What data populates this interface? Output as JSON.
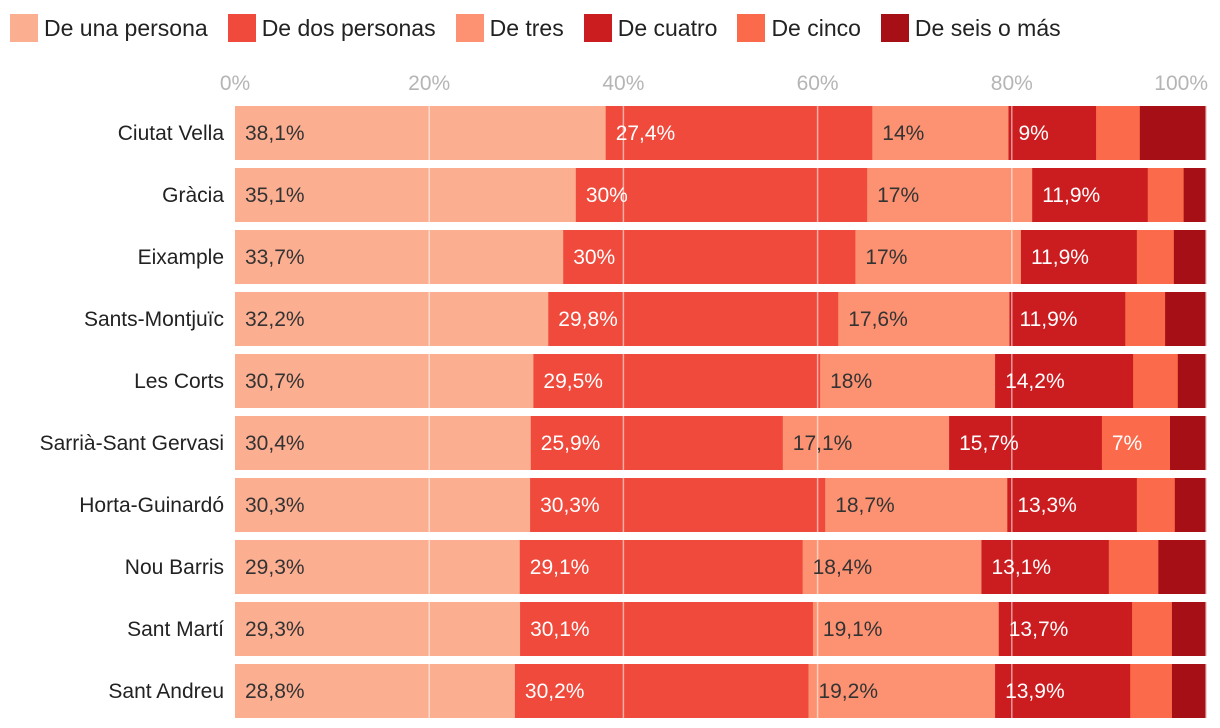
{
  "chart_data": {
    "type": "bar",
    "orientation": "horizontal",
    "stacked": true,
    "title": "",
    "xlabel": "",
    "ylabel": "",
    "xlim": [
      0,
      100
    ],
    "ticks": [
      0,
      20,
      40,
      60,
      80,
      100
    ],
    "tick_labels": [
      "0%",
      "20%",
      "40%",
      "60%",
      "80%",
      "100%"
    ],
    "legend_position": "top",
    "grid": true,
    "categories": [
      "Ciutat Vella",
      "Gràcia",
      "Eixample",
      "Sants-Montjuïc",
      "Les Corts",
      "Sarrià-Sant Gervasi",
      "Horta-Guinardó",
      "Nou Barris",
      "Sant Martí",
      "Sant Andreu"
    ],
    "series": [
      {
        "name": "De una persona",
        "color": "#fcae91",
        "values": [
          38.1,
          35.1,
          33.7,
          32.2,
          30.7,
          30.4,
          30.3,
          29.3,
          29.3,
          28.8
        ],
        "labels": [
          "38,1%",
          "35,1%",
          "33,7%",
          "32,2%",
          "30,7%",
          "30,4%",
          "30,3%",
          "29,3%",
          "29,3%",
          "28,8%"
        ]
      },
      {
        "name": "De dos personas",
        "color": "#ef4a3c",
        "values": [
          27.4,
          30.0,
          30.0,
          29.8,
          29.5,
          25.9,
          30.3,
          29.1,
          30.1,
          30.2
        ],
        "labels": [
          "27,4%",
          "30%",
          "30%",
          "29,8%",
          "29,5%",
          "25,9%",
          "30,3%",
          "29,1%",
          "30,1%",
          "30,2%"
        ]
      },
      {
        "name": "De tres",
        "color": "#fc9272",
        "values": [
          14.0,
          17.0,
          17.0,
          17.6,
          18.0,
          17.1,
          18.7,
          18.4,
          19.1,
          19.2
        ],
        "labels": [
          "14%",
          "17%",
          "17%",
          "17,6%",
          "18%",
          "17,1%",
          "18,7%",
          "18,4%",
          "19,1%",
          "19,2%"
        ]
      },
      {
        "name": "De cuatro",
        "color": "#cb1d20",
        "values": [
          9.0,
          11.9,
          11.9,
          11.9,
          14.2,
          15.7,
          13.3,
          13.1,
          13.7,
          13.9
        ],
        "labels": [
          "9%",
          "11,9%",
          "11,9%",
          "11,9%",
          "14,2%",
          "15,7%",
          "13,3%",
          "13,1%",
          "13,7%",
          "13,9%"
        ]
      },
      {
        "name": "De cinco",
        "color": "#fb6a4a",
        "values": [
          4.5,
          3.7,
          3.8,
          4.1,
          4.6,
          7.0,
          3.9,
          5.1,
          4.1,
          4.3
        ],
        "labels": [
          "",
          "",
          "",
          "",
          "",
          "7%",
          "",
          "",
          "",
          ""
        ]
      },
      {
        "name": "De seis o más",
        "color": "#a50f15",
        "values": [
          6.8,
          2.3,
          3.3,
          4.2,
          2.9,
          3.7,
          3.2,
          4.9,
          3.5,
          3.5
        ],
        "labels": [
          "",
          "",
          "",
          "",
          "",
          "",
          "",
          "",
          "",
          ""
        ]
      }
    ]
  }
}
